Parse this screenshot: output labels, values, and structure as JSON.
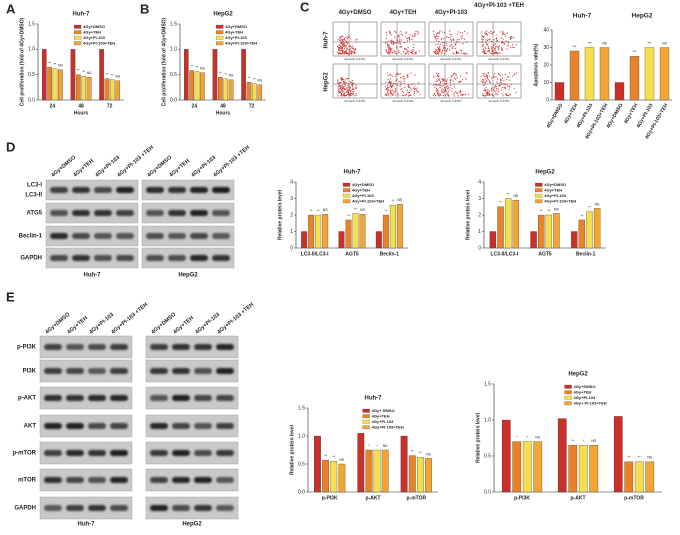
{
  "panel_labels": [
    "A",
    "B",
    "C",
    "D",
    "E"
  ],
  "flow": {
    "columns": [
      "4Gy+DMSO",
      "4Gy+TEH",
      "4Gy+PI-103",
      "4Gy+PI-103 +TEH"
    ],
    "rows": [
      "Huh-7",
      "HepG2"
    ],
    "x_label": "Annexin V-FITC"
  },
  "blots": {
    "D": {
      "lanes": [
        "4Gy+DMSO",
        "4Gy+TEH",
        "4Gy+PI-103",
        "4Gy+PI-103 +TEH"
      ],
      "rows": [
        "LC3-I",
        "LC3-II",
        "ATG5",
        "Beclin-1",
        "GAPDH"
      ],
      "cells": [
        "Huh-7",
        "HepG2"
      ]
    },
    "E": {
      "lanes": [
        "4Gy+DMSO",
        "4Gy+TEH",
        "4Gy+PI-103",
        "4Gy+PI-103 +TEH"
      ],
      "rows": [
        "p-PI3K",
        "PI3K",
        "p-AKT",
        "AKT",
        "p-mTOR",
        "mTOR",
        "GAPDH"
      ],
      "cells": [
        "Huh-7",
        "HepG2"
      ]
    }
  },
  "chart_data": [
    {
      "type": "bar",
      "title": "Huh-7",
      "y_label": "Cell proliferation (fold of 4Gy+DMSO)",
      "x_label": "Hours",
      "categories": [
        "24",
        "48",
        "72"
      ],
      "ylim": [
        0,
        1.5
      ],
      "yticks": [
        {
          "value": 0,
          "label": "0.0"
        },
        {
          "value": 0.5,
          "label": "0.5"
        },
        {
          "value": 1,
          "label": "1.0"
        },
        {
          "value": 1.5,
          "label": "1.5"
        }
      ],
      "legend": "upper right",
      "series": [
        {
          "name": "4Gy+DMSO",
          "color": "#c8312a",
          "values": [
            1,
            1,
            1
          ]
        },
        {
          "name": "4Gy+TEH",
          "color": "#e8832a",
          "values": [
            0.65,
            0.5,
            0.42
          ],
          "significance": [
            "**",
            "**",
            "**"
          ]
        },
        {
          "name": "4Gy+PI-103",
          "color": "#f5df4d",
          "values": [
            0.62,
            0.47,
            0.4
          ],
          "significance": [
            "**",
            "**",
            "**"
          ]
        },
        {
          "name": "4Gy+PI-103+TEH",
          "color": "#f2a533",
          "values": [
            0.6,
            0.45,
            0.38
          ],
          "significance": [
            "NS",
            "NS",
            "NS"
          ]
        }
      ]
    },
    {
      "type": "bar",
      "title": "HepG2",
      "y_label": "Cell proliferation (fold of 4Gy+DMSO)",
      "x_label": "Hours",
      "categories": [
        "24",
        "48",
        "72"
      ],
      "ylim": [
        0,
        1.5
      ],
      "yticks": [
        {
          "value": 0,
          "label": "0.0"
        },
        {
          "value": 0.5,
          "label": "0.5"
        },
        {
          "value": 1,
          "label": "1.0"
        },
        {
          "value": 1.5,
          "label": "1.5"
        }
      ],
      "legend": "upper right",
      "series": [
        {
          "name": "4Gy+DMSO",
          "color": "#c8312a",
          "values": [
            1,
            1,
            1
          ]
        },
        {
          "name": "4Gy+TEH",
          "color": "#e8832a",
          "values": [
            0.58,
            0.45,
            0.35
          ],
          "significance": [
            "**",
            "**",
            "**"
          ]
        },
        {
          "name": "4Gy+PI-103",
          "color": "#f5df4d",
          "values": [
            0.56,
            0.42,
            0.32
          ],
          "significance": [
            "**",
            "**",
            "**"
          ]
        },
        {
          "name": "4Gy+PI-103+TEH",
          "color": "#f2a533",
          "values": [
            0.54,
            0.4,
            0.3
          ],
          "significance": [
            "NS",
            "NS",
            "NS"
          ]
        }
      ]
    },
    {
      "type": "bar",
      "y_label": "Apoptosis rate(%)",
      "groups": [
        "Huh-7",
        "HepG2"
      ],
      "categories": [
        "4Gy+DMSO",
        "4Gy+TEH",
        "4Gy+PI-103",
        "4Gy+PI-103+TEH",
        "4Gy+DMSO",
        "4Gy+TEH",
        "4Gy+PI-103",
        "4Gy+PI-103+TEH"
      ],
      "values": [
        10,
        28,
        30,
        30,
        10,
        25,
        30,
        30
      ],
      "colors": [
        "#c8312a",
        "#e8832a",
        "#f5df4d",
        "#f2a533",
        "#c8312a",
        "#e8832a",
        "#f5df4d",
        "#f2a533"
      ],
      "significance": [
        null,
        "***",
        "***",
        "NS",
        null,
        "***",
        "***",
        "NS"
      ],
      "ylim": [
        0,
        40
      ],
      "yticks": [
        0,
        10,
        20,
        30,
        40
      ]
    },
    {
      "type": "bar",
      "title": "Huh-7",
      "y_label": "Relative protein level",
      "categories": [
        "LC3-II/LC3-I",
        "AGT5",
        "Beclin-1"
      ],
      "ylim": [
        0,
        4
      ],
      "yticks": [
        0,
        1,
        2,
        3,
        4
      ],
      "legend": "upper right",
      "series": [
        {
          "name": "4Gy+DMSO",
          "color": "#c8312a",
          "values": [
            1,
            1,
            1
          ]
        },
        {
          "name": "4Gy+TEH",
          "color": "#e8832a",
          "values": [
            2,
            1.7,
            2
          ],
          "significance": [
            "**",
            "**",
            "**"
          ]
        },
        {
          "name": "4Gy+PI-103",
          "color": "#f5df4d",
          "values": [
            2,
            2.1,
            2.6
          ],
          "significance": [
            "**",
            "**",
            "**"
          ]
        },
        {
          "name": "4Gy+PI-103+TEH",
          "color": "#f2a533",
          "values": [
            2.05,
            2.05,
            2.65
          ],
          "significance": [
            "NS",
            "NS",
            "NS"
          ]
        }
      ]
    },
    {
      "type": "bar",
      "title": "HepG2",
      "y_label": "Relative protein level",
      "categories": [
        "LC3-II/LC3-I",
        "AGT5",
        "Beclin-1"
      ],
      "ylim": [
        0,
        4
      ],
      "yticks": [
        0,
        1,
        2,
        3,
        4
      ],
      "legend": "upper right",
      "series": [
        {
          "name": "4Gy+DMSO",
          "color": "#c8312a",
          "values": [
            1,
            1,
            1
          ]
        },
        {
          "name": "4Gy+TEH",
          "color": "#e8832a",
          "values": [
            2.5,
            2,
            1.7
          ],
          "significance": [
            "**",
            "**",
            "**"
          ]
        },
        {
          "name": "4Gy+PI-103",
          "color": "#f5df4d",
          "values": [
            3,
            2,
            2.2
          ],
          "significance": [
            "**",
            "**",
            "**"
          ]
        },
        {
          "name": "4Gy+PI-103+TEH",
          "color": "#f2a533",
          "values": [
            2.9,
            2.1,
            2.4
          ],
          "significance": [
            "NS",
            "NS",
            "NS"
          ]
        }
      ]
    },
    {
      "type": "bar",
      "title": "Huh-7",
      "y_label": "Relative protein level",
      "categories": [
        "p-PI3K",
        "p-AKT",
        "p-mTOR"
      ],
      "ylim": [
        0,
        1.5
      ],
      "yticks": [
        {
          "value": 0,
          "label": "0.0"
        },
        {
          "value": 0.5,
          "label": "0.5"
        },
        {
          "value": 1,
          "label": "1.0"
        },
        {
          "value": 1.5,
          "label": "1.5"
        }
      ],
      "legend": "upper right",
      "series": [
        {
          "name": "4Gy+ DMSO",
          "color": "#c8312a",
          "values": [
            1,
            1.05,
            1
          ]
        },
        {
          "name": "4Gy+TEH",
          "color": "#e8832a",
          "values": [
            0.57,
            0.75,
            0.65
          ],
          "significance": [
            "**",
            "*",
            "**"
          ]
        },
        {
          "name": "4Gy+PI-103",
          "color": "#f5df4d",
          "values": [
            0.55,
            0.75,
            0.62
          ],
          "significance": [
            "**",
            "*",
            "**"
          ]
        },
        {
          "name": "4Gy+PI-103+TEH",
          "color": "#f2a533",
          "values": [
            0.5,
            0.75,
            0.6
          ],
          "significance": [
            "NS",
            "NS",
            "NS"
          ]
        }
      ]
    },
    {
      "type": "bar",
      "title": "HepG2",
      "y_label": "Relative protein level",
      "categories": [
        "p-PI3K",
        "p-AKT",
        "p-mTOR"
      ],
      "ylim": [
        0,
        1.5
      ],
      "yticks": [
        {
          "value": 0,
          "label": "0.0"
        },
        {
          "value": 0.5,
          "label": "0.5"
        },
        {
          "value": 1,
          "label": "1.0"
        },
        {
          "value": 1.5,
          "label": "1.5"
        }
      ],
      "legend": "upper right",
      "series": [
        {
          "name": "4Gy+DMSO",
          "color": "#c8312a",
          "values": [
            1,
            1.02,
            1.05
          ]
        },
        {
          "name": "4Gy+TEH",
          "color": "#e8832a",
          "values": [
            0.7,
            0.65,
            0.42
          ],
          "significance": [
            "*",
            "**",
            "**"
          ]
        },
        {
          "name": "4Gy+PI-103",
          "color": "#f5df4d",
          "values": [
            0.7,
            0.65,
            0.42
          ],
          "significance": [
            "*",
            "*",
            "**"
          ]
        },
        {
          "name": "4Gy+ PI-103+TEH",
          "color": "#f2a533",
          "values": [
            0.7,
            0.65,
            0.42
          ],
          "significance": [
            "NS",
            "NS",
            "NS"
          ]
        }
      ]
    }
  ]
}
